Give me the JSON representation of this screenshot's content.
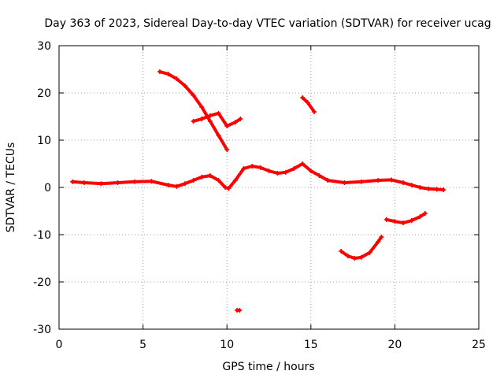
{
  "chart_data": {
    "type": "line",
    "title": "Day 363 of 2023, Sidereal Day-to-day VTEC variation (SDTVAR) for receiver ucag",
    "xlabel": "GPS time / hours",
    "ylabel": "SDTVAR / TECUs",
    "xlim": [
      0,
      25
    ],
    "ylim": [
      -30,
      30
    ],
    "xticks": [
      0,
      5,
      10,
      15,
      20,
      25
    ],
    "yticks": [
      -30,
      -20,
      -10,
      0,
      10,
      20,
      30
    ],
    "xtick_labels": [
      "0",
      "5",
      "10",
      "15",
      "20",
      "25"
    ],
    "ytick_labels": [
      "-30",
      "-20",
      "-10",
      "0",
      "10",
      "20",
      "30"
    ],
    "grid": true,
    "color": "#ff0000",
    "series": [
      {
        "name": "main-band",
        "x": [
          0.8,
          1.5,
          2.5,
          3.5,
          4.5,
          5.5,
          6.5,
          7.0,
          7.5,
          8.0,
          8.5,
          9.0,
          9.5,
          9.9,
          10.1,
          10.5,
          11.0,
          11.5,
          12.0,
          12.5,
          13.0,
          13.5,
          14.0,
          14.5,
          15.0,
          15.5,
          16.0,
          17.0,
          18.0,
          19.0,
          19.8,
          20.5,
          21.0,
          21.5,
          22.0,
          22.5,
          22.9
        ],
        "y": [
          1.2,
          1.0,
          0.8,
          1.0,
          1.2,
          1.3,
          0.5,
          0.2,
          0.8,
          1.5,
          2.2,
          2.5,
          1.5,
          0.0,
          -0.2,
          1.5,
          4.0,
          4.5,
          4.2,
          3.5,
          3.0,
          3.2,
          4.0,
          5.0,
          3.5,
          2.5,
          1.5,
          1.0,
          1.2,
          1.5,
          1.6,
          1.0,
          0.5,
          0.0,
          -0.3,
          -0.4,
          -0.5
        ]
      },
      {
        "name": "arc-upper",
        "x": [
          6.0,
          6.5,
          7.0,
          7.5,
          8.0,
          8.5,
          9.0,
          9.5,
          10.0
        ],
        "y": [
          24.5,
          24.0,
          23.0,
          21.5,
          19.5,
          17.0,
          14.0,
          11.0,
          8.0
        ]
      },
      {
        "name": "loop-segment",
        "x": [
          8.0,
          8.5,
          9.0,
          9.5,
          10.0,
          10.5,
          10.8
        ],
        "y": [
          14.0,
          14.5,
          15.2,
          15.7,
          13.0,
          13.8,
          14.5
        ]
      },
      {
        "name": "segment-15",
        "x": [
          14.5,
          14.8,
          15.2
        ],
        "y": [
          19.0,
          18.0,
          16.0
        ]
      },
      {
        "name": "dip-17-19",
        "x": [
          16.8,
          17.2,
          17.6,
          18.0,
          18.5,
          19.0,
          19.2
        ],
        "y": [
          -13.5,
          -14.5,
          -15.0,
          -14.8,
          -13.8,
          -11.5,
          -10.5
        ]
      },
      {
        "name": "arc-20-22",
        "x": [
          19.5,
          20.0,
          20.5,
          21.0,
          21.5,
          21.8
        ],
        "y": [
          -6.8,
          -7.2,
          -7.5,
          -7.0,
          -6.2,
          -5.5
        ]
      },
      {
        "name": "point-10-7",
        "x": [
          10.6,
          10.75
        ],
        "y": [
          -26.0,
          -26.0
        ]
      }
    ]
  }
}
